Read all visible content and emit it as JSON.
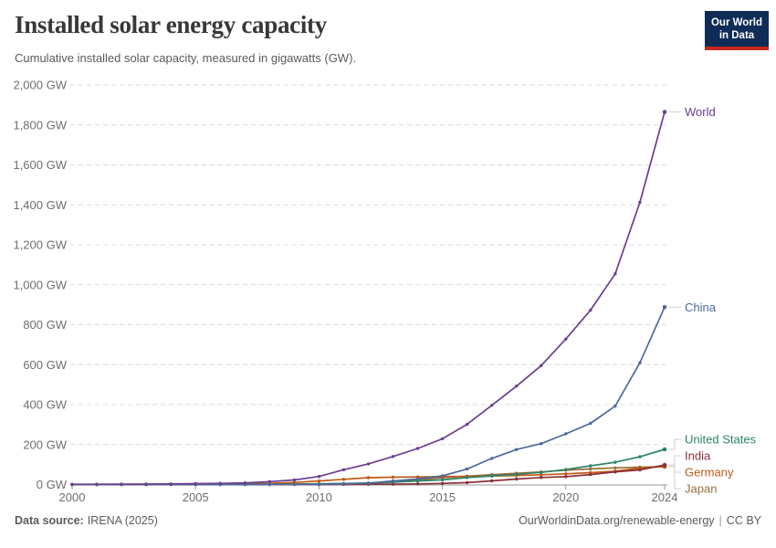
{
  "chart_data": {
    "type": "line",
    "title": "Installed solar energy capacity",
    "subtitle": "Cumulative installed solar capacity, measured in gigawatts (GW).",
    "unit": "GW",
    "x": [
      2000,
      2001,
      2002,
      2003,
      2004,
      2005,
      2006,
      2007,
      2008,
      2009,
      2010,
      2011,
      2012,
      2013,
      2014,
      2015,
      2016,
      2017,
      2018,
      2019,
      2020,
      2021,
      2022,
      2023,
      2024
    ],
    "series": [
      {
        "name": "World",
        "color": "#6d3e91",
        "values": [
          1.2,
          1.5,
          1.9,
          2.3,
          3.4,
          4.6,
          6.1,
          8.4,
          14.7,
          22.8,
          40.3,
          74.0,
          103.4,
          140.5,
          180.8,
          228.9,
          301.2,
          396.3,
          492.6,
          595.5,
          728.4,
          873.0,
          1055.0,
          1412.9,
          1865.1
        ]
      },
      {
        "name": "China",
        "color": "#4c6a9c",
        "values": [
          0.0,
          0.0,
          0.1,
          0.1,
          0.1,
          0.1,
          0.1,
          0.1,
          0.1,
          0.3,
          1.0,
          3.1,
          6.7,
          17.8,
          28.4,
          43.5,
          77.8,
          130.8,
          175.3,
          204.7,
          253.8,
          306.4,
          393.0,
          609.5,
          887.9
        ]
      },
      {
        "name": "United States",
        "color": "#2c8465",
        "values": [
          0.1,
          0.2,
          0.2,
          0.3,
          0.4,
          0.5,
          0.6,
          0.8,
          1.2,
          1.6,
          2.9,
          4.8,
          7.3,
          12.1,
          17.7,
          23.4,
          34.7,
          43.0,
          51.0,
          60.7,
          74.8,
          93.7,
          111.5,
          139.0,
          176.2
        ]
      },
      {
        "name": "India",
        "color": "#883039",
        "values": [
          0.0,
          0.0,
          0.0,
          0.0,
          0.0,
          0.0,
          0.0,
          0.0,
          0.0,
          0.1,
          0.1,
          0.6,
          1.2,
          1.7,
          3.1,
          5.6,
          9.8,
          18.1,
          27.4,
          35.1,
          39.2,
          49.7,
          63.1,
          73.1,
          97.9
        ]
      },
      {
        "name": "Germany",
        "color": "#c05917",
        "values": [
          0.1,
          0.2,
          0.3,
          0.4,
          1.1,
          2.1,
          2.9,
          4.2,
          6.1,
          10.6,
          18.0,
          25.9,
          34.1,
          36.7,
          37.9,
          39.2,
          40.7,
          42.3,
          45.2,
          48.9,
          53.7,
          59.4,
          66.6,
          81.7,
          90.1
        ]
      },
      {
        "name": "Japan",
        "color": "#996d39",
        "values": [
          0.3,
          0.5,
          0.6,
          0.9,
          1.1,
          1.4,
          1.7,
          1.9,
          2.1,
          2.6,
          3.6,
          4.9,
          6.6,
          13.6,
          23.3,
          34.2,
          42.0,
          49.5,
          56.2,
          63.2,
          71.9,
          78.4,
          83.1,
          87.1,
          89.1
        ]
      }
    ],
    "xlim": [
      2000,
      2024
    ],
    "ylim": [
      0,
      2000
    ],
    "xticks": [
      2000,
      2005,
      2010,
      2015,
      2020,
      2024
    ],
    "ytick_values": [
      0,
      200,
      400,
      600,
      800,
      1000,
      1200,
      1400,
      1600,
      1800,
      2000
    ],
    "ytick_labels": [
      "0 GW",
      "200 GW",
      "400 GW",
      "600 GW",
      "800 GW",
      "1,000 GW",
      "1,200 GW",
      "1,400 GW",
      "1,600 GW",
      "1,800 GW",
      "2,000 GW"
    ],
    "layout": {
      "grid": "horizontal-dashed",
      "legend_position": "labels-at-line-ends-right",
      "grid_color": "#dcdcdc",
      "axis_color": "#969696",
      "tick_text_color": "#6e6e6e",
      "leader_line_color": "#cfcfcf"
    }
  },
  "logo": {
    "line1": "Our World",
    "line2": "in Data",
    "bg": "#0e2c56",
    "accent": "#c6291c"
  },
  "footer": {
    "source_label": "Data source:",
    "source_value": "IRENA (2025)",
    "link": "OurWorldinData.org/renewable-energy",
    "separator": "|",
    "license": "CC BY"
  }
}
